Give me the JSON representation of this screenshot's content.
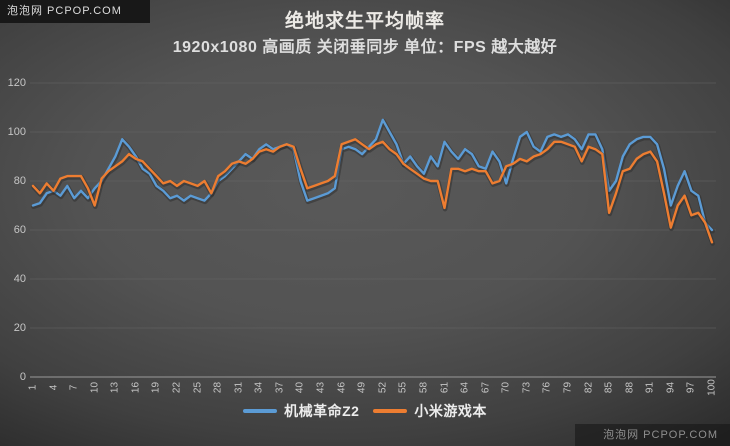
{
  "watermarks": {
    "top_left": "泡泡网 PCPOP.COM",
    "bottom_right": "泡泡网 PCPOP.COM"
  },
  "chart_data": {
    "type": "line",
    "title": "绝地求生平均帧率",
    "subtitle": "1920x1080 高画质 关闭垂同步 单位：FPS 越大越好",
    "xlabel": "",
    "ylabel": "",
    "x_range": [
      1,
      100
    ],
    "x_tick_labels": [
      1,
      4,
      7,
      10,
      13,
      16,
      19,
      22,
      25,
      28,
      31,
      34,
      37,
      40,
      43,
      46,
      49,
      52,
      55,
      58,
      61,
      64,
      67,
      70,
      73,
      76,
      79,
      82,
      85,
      88,
      91,
      94,
      97,
      100
    ],
    "y_ticks": [
      0,
      20,
      40,
      60,
      80,
      100,
      120
    ],
    "ylim": [
      0,
      120
    ],
    "grid": true,
    "legend_position": "bottom",
    "series": [
      {
        "name": "机械革命Z2",
        "color": "#5b9bd5",
        "values": [
          70,
          71,
          75,
          76,
          74,
          78,
          73,
          76,
          73,
          77,
          80,
          85,
          90,
          97,
          94,
          90,
          85,
          83,
          78,
          76,
          73,
          74,
          72,
          74,
          73,
          72,
          75,
          80,
          82,
          85,
          88,
          91,
          89,
          93,
          95,
          93,
          94,
          95,
          93,
          80,
          72,
          73,
          74,
          75,
          77,
          93,
          94,
          93,
          91,
          94,
          97,
          105,
          100,
          95,
          87,
          90,
          86,
          83,
          90,
          86,
          96,
          92,
          89,
          93,
          91,
          86,
          85,
          92,
          88,
          79,
          89,
          98,
          100,
          94,
          92,
          98,
          99,
          98,
          99,
          97,
          93,
          99,
          99,
          93,
          76,
          80,
          90,
          95,
          97,
          98,
          98,
          95,
          85,
          70,
          78,
          84,
          76,
          74,
          63,
          60
        ]
      },
      {
        "name": "小米游戏本",
        "color": "#ed7d31",
        "values": [
          78,
          75,
          79,
          76,
          81,
          82,
          82,
          82,
          77,
          70,
          81,
          84,
          86,
          88,
          91,
          89,
          88,
          85,
          82,
          79,
          80,
          78,
          80,
          79,
          78,
          80,
          75,
          82,
          84,
          87,
          88,
          87,
          89,
          92,
          93,
          92,
          94,
          95,
          94,
          85,
          77,
          78,
          79,
          80,
          82,
          95,
          96,
          97,
          95,
          93,
          95,
          96,
          93,
          91,
          87,
          85,
          83,
          81,
          80,
          80,
          69,
          85,
          85,
          84,
          85,
          84,
          84,
          79,
          80,
          86,
          87,
          89,
          88,
          90,
          91,
          93,
          96,
          96,
          95,
          94,
          88,
          94,
          93,
          91,
          67,
          75,
          84,
          85,
          89,
          91,
          92,
          88,
          75,
          61,
          70,
          74,
          66,
          67,
          63,
          55
        ]
      }
    ],
    "colors": {
      "background_center": "#585858",
      "background_edge": "#242424",
      "gridline": "#6a6a6a",
      "axis_line": "#9a9a9a",
      "tick_label": "#c6c6c6",
      "title_text": "#eceae6"
    }
  }
}
